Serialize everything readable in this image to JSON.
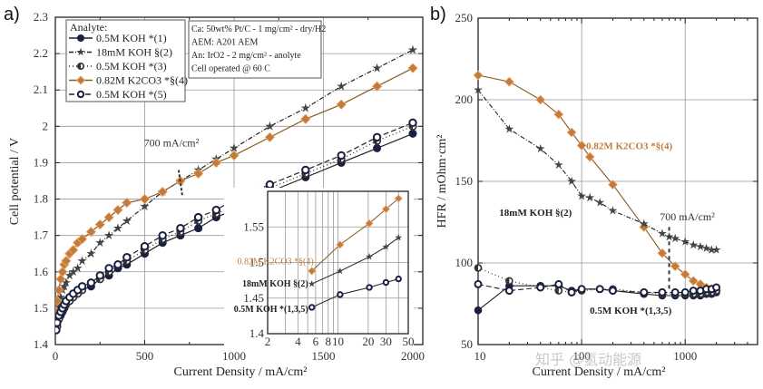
{
  "chart_data": [
    {
      "panel": "a)",
      "type": "line",
      "title": "",
      "xlabel": "Current Density / mA/cm²",
      "ylabel": "Cell potential / V",
      "xlim": [
        0,
        2000
      ],
      "ylim": [
        1.4,
        2.3
      ],
      "xticks": [
        "0",
        "500",
        "1000",
        "1500",
        "2000"
      ],
      "yticks": [
        "1.4",
        "1.5",
        "1.6",
        "1.7",
        "1.8",
        "1.9",
        "2",
        "2.1",
        "2.2",
        "2.3"
      ],
      "grid": true,
      "legend": {
        "title": "Analyte:",
        "position": "top-left",
        "entries": [
          "0.5M KOH *(1)",
          "18mM KOH §(2)",
          "0.5M KOH *(3)",
          "0.82M K2CO3 *§(4)",
          "0.5M KOH *(5)"
        ]
      },
      "info_box": [
        "Ca: 50wt% Pt/C - 1 mg/cm² - dry/H2",
        "AEM: A201 AEM",
        "An: IrO2 - 2 mg/cm² - anolyte",
        "Cell operated @ 60 C"
      ],
      "annotation": "700 mA/cm²",
      "series": [
        {
          "name": "0.5M KOH *(1)",
          "marker": "filled-circle",
          "color": "#1a2040",
          "x": [
            5,
            10,
            20,
            30,
            40,
            50,
            60,
            80,
            100,
            125,
            150,
            200,
            250,
            300,
            350,
            400,
            500,
            600,
            700,
            800,
            900,
            1000,
            1200,
            1400,
            1600,
            1800,
            2000
          ],
          "y": [
            1.44,
            1.45,
            1.47,
            1.48,
            1.49,
            1.5,
            1.51,
            1.52,
            1.53,
            1.54,
            1.55,
            1.56,
            1.58,
            1.59,
            1.61,
            1.62,
            1.65,
            1.68,
            1.7,
            1.72,
            1.75,
            1.77,
            1.82,
            1.86,
            1.9,
            1.94,
            1.98
          ]
        },
        {
          "name": "18mM KOH §(2)",
          "marker": "star",
          "color": "#444",
          "x": [
            5,
            10,
            20,
            30,
            40,
            50,
            60,
            80,
            100,
            125,
            150,
            200,
            250,
            300,
            350,
            400,
            500,
            600,
            700,
            800,
            900,
            1000,
            1200,
            1400,
            1600,
            1800,
            2000
          ],
          "y": [
            1.47,
            1.49,
            1.51,
            1.53,
            1.55,
            1.56,
            1.57,
            1.59,
            1.6,
            1.61,
            1.63,
            1.65,
            1.68,
            1.7,
            1.72,
            1.74,
            1.78,
            1.82,
            1.85,
            1.88,
            1.91,
            1.94,
            2.0,
            2.05,
            2.11,
            2.16,
            2.21
          ]
        },
        {
          "name": "0.5M KOH *(3)",
          "marker": "half-circle",
          "color": "#333",
          "x": [
            5,
            10,
            20,
            30,
            40,
            50,
            60,
            80,
            100,
            125,
            150,
            200,
            250,
            300,
            350,
            400,
            500,
            600,
            700,
            800,
            900,
            1000,
            1200,
            1400,
            1600,
            1800,
            2000
          ],
          "y": [
            1.44,
            1.45,
            1.47,
            1.49,
            1.5,
            1.51,
            1.51,
            1.52,
            1.53,
            1.54,
            1.55,
            1.57,
            1.58,
            1.6,
            1.62,
            1.63,
            1.66,
            1.69,
            1.71,
            1.74,
            1.76,
            1.78,
            1.83,
            1.87,
            1.91,
            1.96,
            2.0
          ]
        },
        {
          "name": "0.82M K2CO3 *§(4)",
          "marker": "diamond",
          "color": "#c47a3a",
          "x": [
            5,
            10,
            20,
            30,
            40,
            50,
            60,
            80,
            100,
            125,
            150,
            200,
            250,
            300,
            350,
            400,
            500,
            600,
            700,
            800,
            900,
            1000,
            1200,
            1400,
            1600,
            1800,
            2000
          ],
          "y": [
            1.49,
            1.52,
            1.55,
            1.58,
            1.6,
            1.62,
            1.63,
            1.65,
            1.66,
            1.68,
            1.69,
            1.71,
            1.73,
            1.75,
            1.77,
            1.79,
            1.8,
            1.82,
            1.85,
            1.87,
            1.9,
            1.92,
            1.97,
            2.02,
            2.06,
            2.11,
            2.16
          ]
        },
        {
          "name": "0.5M KOH *(5)",
          "marker": "open-circle",
          "color": "#1a2040",
          "x": [
            5,
            10,
            20,
            30,
            40,
            50,
            60,
            80,
            100,
            125,
            150,
            200,
            250,
            300,
            350,
            400,
            500,
            600,
            700,
            800,
            900,
            1000,
            1200,
            1400,
            1600,
            1800,
            2000
          ],
          "y": [
            1.44,
            1.46,
            1.48,
            1.49,
            1.5,
            1.51,
            1.52,
            1.53,
            1.54,
            1.55,
            1.56,
            1.57,
            1.59,
            1.61,
            1.62,
            1.64,
            1.67,
            1.7,
            1.72,
            1.75,
            1.77,
            1.8,
            1.84,
            1.88,
            1.92,
            1.97,
            2.01
          ]
        }
      ],
      "inset": {
        "xscale": "log",
        "xlim": [
          2,
          50
        ],
        "ylim": [
          1.4,
          1.6
        ],
        "xticks": [
          "2",
          "4",
          "6",
          "8",
          "10",
          "20",
          "30",
          "50"
        ],
        "yticks": [
          "1.4",
          "1.45",
          "1.5",
          "1.55"
        ],
        "labels": [
          "0.82M K2CO3 *§(4)",
          "18mM KOH §(2)",
          "0.5M KOH *(1,3,5)"
        ],
        "series": [
          {
            "name": "0.82M K2CO3 *§(4)",
            "x": [
              5.5,
              10.5,
              20.5,
              30,
              40
            ],
            "y": [
              1.488,
              1.525,
              1.555,
              1.575,
              1.59
            ]
          },
          {
            "name": "18mM KOH §(2)",
            "x": [
              5.5,
              10.5,
              20.5,
              30,
              40
            ],
            "y": [
              1.47,
              1.488,
              1.508,
              1.522,
              1.535
            ]
          },
          {
            "name": "0.5M KOH *(1,3,5)",
            "x": [
              5.5,
              10.5,
              20.5,
              30,
              40
            ],
            "y": [
              1.437,
              1.455,
              1.465,
              1.472,
              1.477
            ]
          }
        ]
      }
    },
    {
      "panel": "b)",
      "type": "line",
      "xscale": "log",
      "xlabel": "Current Density / mA/cm²",
      "ylabel": "HFR / mOhm·cm²",
      "xlim": [
        10,
        5000
      ],
      "ylim": [
        50,
        250
      ],
      "xticks": [
        "10",
        "100",
        "1000"
      ],
      "yticks": [
        "50",
        "100",
        "150",
        "200",
        "250"
      ],
      "grid": true,
      "annotation": "700 mA/cm²",
      "labels": [
        "0.82M K2CO3 *§(4)",
        "18mM KOH §(2)",
        "0.5M KOH *(1,3,5)"
      ],
      "series": [
        {
          "name": "0.82M K2CO3 *§(4)",
          "marker": "diamond",
          "color": "#c47a3a",
          "x": [
            10,
            20,
            40,
            60,
            80,
            100,
            120,
            200,
            400,
            600,
            800,
            1000,
            1200,
            1400,
            1600,
            1800,
            2000
          ],
          "y": [
            215,
            211,
            200,
            191,
            180,
            172,
            165,
            148,
            122,
            106,
            98,
            93,
            89,
            87,
            85,
            84,
            83
          ]
        },
        {
          "name": "18mM KOH §(2)",
          "marker": "star",
          "color": "#444",
          "x": [
            10,
            20,
            40,
            60,
            80,
            100,
            120,
            150,
            200,
            400,
            600,
            700,
            800,
            1000,
            1200,
            1400,
            1600,
            1800,
            2000
          ],
          "y": [
            206,
            182,
            170,
            160,
            150,
            141,
            140,
            137,
            132,
            124,
            118,
            116,
            115,
            113,
            111,
            110,
            109,
            108,
            108
          ]
        },
        {
          "name": "0.5M KOH *(1)",
          "marker": "filled-circle",
          "color": "#1a2040",
          "x": [
            10,
            20,
            40,
            60,
            80,
            100,
            150,
            200,
            400,
            600,
            800,
            1000,
            1200,
            1400,
            1600,
            1800,
            2000
          ],
          "y": [
            71,
            86,
            86,
            86,
            83,
            84,
            84,
            83,
            81,
            80,
            80,
            80,
            80,
            80,
            81,
            81,
            82
          ]
        },
        {
          "name": "0.5M KOH *(3)",
          "marker": "half-circle",
          "color": "#333",
          "x": [
            10,
            20,
            40,
            60,
            80,
            100,
            150,
            200,
            400,
            600,
            800,
            1000,
            1200,
            1400,
            1600,
            1800,
            2000
          ],
          "y": [
            97,
            89,
            85,
            83,
            82,
            83,
            84,
            84,
            82,
            81,
            81,
            81,
            81,
            81,
            82,
            82,
            83
          ]
        },
        {
          "name": "0.5M KOH *(5)",
          "marker": "open-circle",
          "color": "#1a2040",
          "x": [
            10,
            20,
            40,
            60,
            80,
            100,
            150,
            200,
            400,
            600,
            800,
            1000,
            1200,
            1400,
            1600,
            1800,
            2000
          ],
          "y": [
            87,
            83,
            85,
            87,
            82,
            84,
            84,
            83,
            82,
            82,
            82,
            82,
            83,
            83,
            84,
            84,
            85
          ]
        }
      ]
    }
  ],
  "watermark": "知乎 @氢动能源"
}
